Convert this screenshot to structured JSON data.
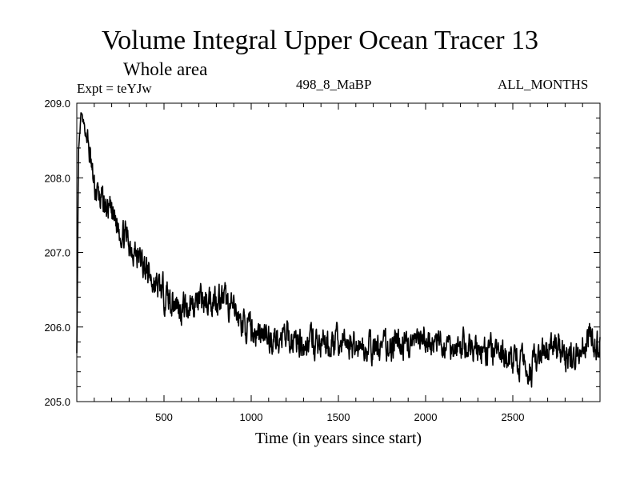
{
  "chart_data": {
    "type": "line",
    "title": "Volume Integral Upper Ocean Tracer 13",
    "subtitle": "Whole area",
    "experiment_label": "Expt = teYJw",
    "period_label": "498_8_MaBP",
    "months_label": "ALL_MONTHS",
    "xlabel": "Time (in years since start)",
    "ylabel": "",
    "xlim": [
      0,
      3000
    ],
    "ylim": [
      205.0,
      209.0
    ],
    "x_ticks": [
      500,
      1000,
      1500,
      2000,
      2500
    ],
    "y_ticks": [
      "205.0",
      "206.0",
      "207.0",
      "208.0",
      "209.0"
    ],
    "series": [
      {
        "name": "Tracer 13",
        "x": [
          0,
          10,
          25,
          40,
          60,
          80,
          100,
          150,
          200,
          250,
          300,
          350,
          400,
          450,
          500,
          550,
          600,
          650,
          700,
          750,
          800,
          850,
          900,
          950,
          1000,
          1100,
          1200,
          1300,
          1400,
          1500,
          1600,
          1700,
          1800,
          1900,
          2000,
          2100,
          2200,
          2300,
          2400,
          2500,
          2550,
          2600,
          2650,
          2700,
          2750,
          2800,
          2850,
          2900,
          2950,
          3000
        ],
        "values": [
          205.7,
          208.3,
          208.85,
          208.7,
          208.5,
          208.2,
          207.85,
          207.65,
          207.5,
          207.3,
          207.15,
          206.95,
          206.75,
          206.55,
          206.45,
          206.35,
          206.25,
          206.3,
          206.35,
          206.35,
          206.4,
          206.35,
          206.2,
          206.05,
          205.95,
          205.85,
          205.85,
          205.8,
          205.75,
          205.8,
          205.75,
          205.7,
          205.75,
          205.75,
          205.8,
          205.75,
          205.75,
          205.7,
          205.65,
          205.55,
          205.5,
          205.45,
          205.55,
          205.7,
          205.75,
          205.6,
          205.6,
          205.75,
          205.85,
          205.75
        ]
      }
    ],
    "line_color": "#000000",
    "background": "#ffffff"
  }
}
